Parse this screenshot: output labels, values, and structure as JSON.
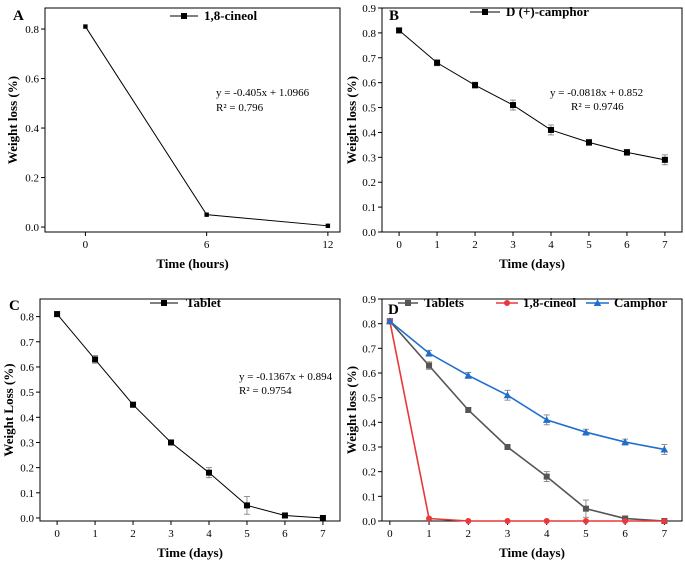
{
  "chart_data": [
    {
      "id": "A",
      "panel_letter": "A",
      "type": "line",
      "xlabel": "Time (hours)",
      "ylabel": "Weight loss (%)",
      "xlim": [
        -2,
        12.6
      ],
      "ylim": [
        -0.02,
        0.885
      ],
      "x_ticks": [
        0,
        6,
        12
      ],
      "y_ticks": [
        0.0,
        0.2,
        0.4,
        0.6,
        0.8
      ],
      "y_tick_labels": [
        "0.0",
        "0.2",
        "0.4",
        "0.6",
        "0.8"
      ],
      "series": [
        {
          "name": "1,8-cineol",
          "color": "#000000",
          "marker": "square",
          "x": [
            0,
            6,
            12
          ],
          "values": [
            0.81,
            0.05,
            0.005
          ],
          "errors": [
            0,
            0,
            0
          ]
        }
      ],
      "legend": [
        "1,8-cineol"
      ],
      "annotations": [
        "y = -0.405x + 1.0966",
        "R² = 0.796"
      ]
    },
    {
      "id": "B",
      "panel_letter": "B",
      "type": "line",
      "xlabel": "Time (days)",
      "ylabel": "Weight loss (%)",
      "xlim": [
        -0.45,
        7.45
      ],
      "ylim": [
        0,
        0.9
      ],
      "x_ticks": [
        0,
        1,
        2,
        3,
        4,
        5,
        6,
        7
      ],
      "y_ticks": [
        0.0,
        0.1,
        0.2,
        0.3,
        0.4,
        0.5,
        0.6,
        0.7,
        0.8,
        0.9
      ],
      "y_tick_labels": [
        "0.0",
        "0.1",
        "0.2",
        "0.3",
        "0.4",
        "0.5",
        "0.6",
        "0.7",
        "0.8",
        "0.9"
      ],
      "series": [
        {
          "name": "D (+)-camphor",
          "color": "#000000",
          "marker": "square",
          "x": [
            0,
            1,
            2,
            3,
            4,
            5,
            6,
            7
          ],
          "values": [
            0.81,
            0.68,
            0.59,
            0.51,
            0.41,
            0.36,
            0.32,
            0.29
          ],
          "errors": [
            0.01,
            0.012,
            0.012,
            0.02,
            0.02,
            0.012,
            0.012,
            0.02
          ]
        }
      ],
      "legend": [
        "D (+)-camphor"
      ],
      "annotations": [
        "y = -0.0818x + 0.852",
        "R² = 0.9746"
      ]
    },
    {
      "id": "C",
      "panel_letter": "C",
      "type": "line",
      "xlabel": "Time (days)",
      "ylabel": "Weight Loss  (%)",
      "xlim": [
        -0.45,
        7.45
      ],
      "ylim": [
        -0.012,
        0.87
      ],
      "x_ticks": [
        0,
        1,
        2,
        3,
        4,
        5,
        6,
        7
      ],
      "y_ticks": [
        0.0,
        0.1,
        0.2,
        0.3,
        0.4,
        0.5,
        0.6,
        0.7,
        0.8
      ],
      "y_tick_labels": [
        "0.0",
        "0.1",
        "0.2",
        "0.3",
        "0.4",
        "0.5",
        "0.6",
        "0.7",
        "0.8"
      ],
      "series": [
        {
          "name": "Tablet",
          "color": "#000000",
          "marker": "square",
          "x": [
            0,
            1,
            2,
            3,
            4,
            5,
            6,
            7
          ],
          "values": [
            0.81,
            0.63,
            0.45,
            0.3,
            0.18,
            0.05,
            0.01,
            0.0
          ],
          "errors": [
            0.01,
            0.015,
            0.01,
            0.008,
            0.02,
            0.035,
            0.01,
            0.003
          ]
        }
      ],
      "legend": [
        "Tablet"
      ],
      "annotations": [
        "y = -0.1367x + 0.894",
        "R² = 0.9754"
      ]
    },
    {
      "id": "D",
      "panel_letter": "D",
      "type": "line",
      "xlabel": "Time (days)",
      "ylabel": "Weight loss (%)",
      "xlim": [
        -0.2,
        7.45
      ],
      "ylim": [
        0,
        0.9
      ],
      "x_ticks": [
        0,
        1,
        2,
        3,
        4,
        5,
        6,
        7
      ],
      "y_ticks": [
        0.0,
        0.1,
        0.2,
        0.3,
        0.4,
        0.5,
        0.6,
        0.7,
        0.8,
        0.9
      ],
      "y_tick_labels": [
        "0.0",
        "0.1",
        "0.2",
        "0.3",
        "0.4",
        "0.5",
        "0.6",
        "0.7",
        "0.8",
        "0.9"
      ],
      "series": [
        {
          "name": "Tablets",
          "color": "#555555",
          "marker": "square",
          "x": [
            0,
            1,
            2,
            3,
            4,
            5,
            6,
            7
          ],
          "values": [
            0.81,
            0.63,
            0.45,
            0.3,
            0.18,
            0.05,
            0.01,
            0.0
          ],
          "errors": [
            0.01,
            0.015,
            0.01,
            0.008,
            0.02,
            0.035,
            0.01,
            0.003
          ]
        },
        {
          "name": "1,8-cineol",
          "color": "#e8383b",
          "marker": "circle",
          "x": [
            0,
            1,
            2,
            3,
            4,
            5,
            6,
            7
          ],
          "values": [
            0.81,
            0.01,
            0.0,
            0.0,
            0.0,
            0.0,
            0.0,
            0.0
          ],
          "errors": [
            0,
            0,
            0,
            0,
            0,
            0,
            0,
            0
          ]
        },
        {
          "name": "Camphor",
          "color": "#1f6fce",
          "marker": "triangle",
          "x": [
            0,
            1,
            2,
            3,
            4,
            5,
            6,
            7
          ],
          "values": [
            0.81,
            0.68,
            0.59,
            0.51,
            0.41,
            0.36,
            0.32,
            0.29
          ],
          "errors": [
            0.01,
            0.012,
            0.012,
            0.02,
            0.02,
            0.012,
            0.012,
            0.02
          ]
        }
      ],
      "legend": [
        "Tablets",
        "1,8-cineol",
        "Camphor"
      ],
      "annotations": []
    }
  ]
}
